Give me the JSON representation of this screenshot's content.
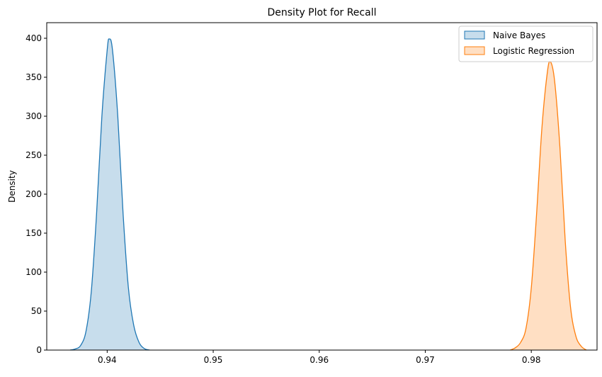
{
  "chart_data": {
    "type": "area",
    "title": "Density Plot for Recall",
    "xlabel": "",
    "ylabel": "Density",
    "xlim": [
      0.9343,
      0.9862
    ],
    "ylim": [
      0,
      420
    ],
    "xticks": [
      0.94,
      0.95,
      0.96,
      0.97,
      0.98
    ],
    "xtick_labels": [
      "0.94",
      "0.95",
      "0.96",
      "0.97",
      "0.98"
    ],
    "yticks": [
      0,
      50,
      100,
      150,
      200,
      250,
      300,
      350,
      400
    ],
    "ytick_labels": [
      "0",
      "50",
      "100",
      "150",
      "200",
      "250",
      "300",
      "350",
      "400"
    ],
    "grid": false,
    "legend": {
      "position": "top-right",
      "entries": [
        "Naive Bayes",
        "Logistic Regression"
      ]
    },
    "series": [
      {
        "name": "Naive Bayes",
        "line_color": "#1f77b4",
        "fill_color": "#1f77b4",
        "fill_opacity": 0.25,
        "points": [
          [
            0.9365,
            0.0
          ],
          [
            0.937,
            1.5
          ],
          [
            0.9375,
            6
          ],
          [
            0.938,
            24
          ],
          [
            0.9385,
            75
          ],
          [
            0.939,
            175
          ],
          [
            0.9395,
            300
          ],
          [
            0.94,
            385
          ],
          [
            0.9402,
            399
          ],
          [
            0.9405,
            385
          ],
          [
            0.941,
            300
          ],
          [
            0.9415,
            175
          ],
          [
            0.942,
            80
          ],
          [
            0.9425,
            32
          ],
          [
            0.943,
            10
          ],
          [
            0.9435,
            2
          ],
          [
            0.944,
            0.0
          ]
        ]
      },
      {
        "name": "Logistic Regression",
        "line_color": "#ff7f0e",
        "fill_color": "#ff7f0e",
        "fill_opacity": 0.25,
        "points": [
          [
            0.978,
            0.0
          ],
          [
            0.9785,
            3
          ],
          [
            0.979,
            10
          ],
          [
            0.9795,
            28
          ],
          [
            0.98,
            80
          ],
          [
            0.9805,
            175
          ],
          [
            0.981,
            285
          ],
          [
            0.9815,
            355
          ],
          [
            0.9818,
            370
          ],
          [
            0.9822,
            345
          ],
          [
            0.9827,
            260
          ],
          [
            0.9832,
            140
          ],
          [
            0.9837,
            55
          ],
          [
            0.9842,
            18
          ],
          [
            0.9847,
            5
          ],
          [
            0.9852,
            0.0
          ]
        ]
      }
    ]
  }
}
